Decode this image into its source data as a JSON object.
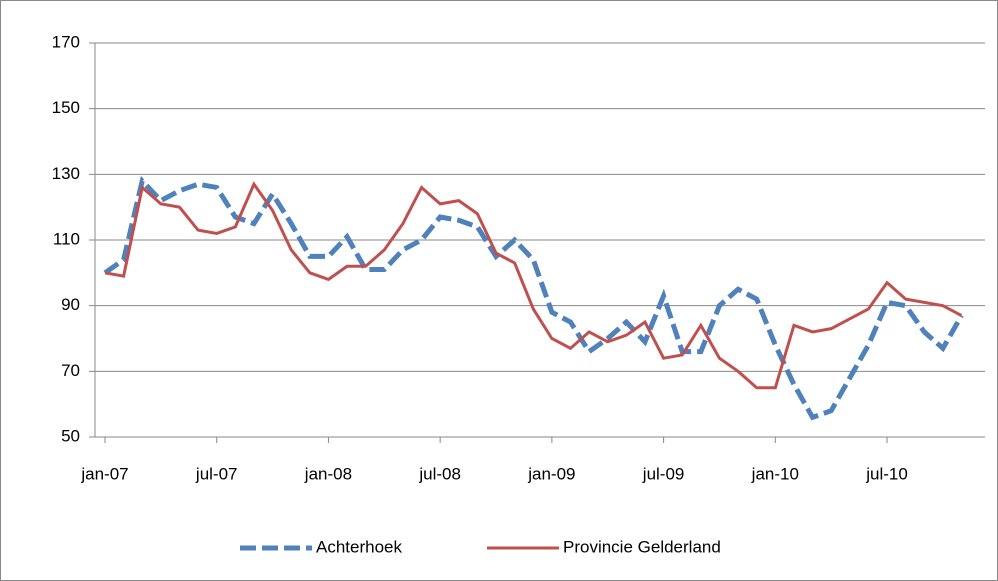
{
  "chart_data": {
    "type": "line",
    "categories": [
      "jan-07",
      null,
      null,
      null,
      null,
      null,
      "jul-07",
      null,
      null,
      null,
      null,
      null,
      "jan-08",
      null,
      null,
      null,
      null,
      null,
      "jul-08",
      null,
      null,
      null,
      null,
      null,
      "jan-09",
      null,
      null,
      null,
      null,
      null,
      "jul-09",
      null,
      null,
      null,
      null,
      null,
      "jan-10",
      null,
      null,
      null,
      null,
      null,
      "jul-10",
      null,
      null,
      null,
      null
    ],
    "series": [
      {
        "name": "Achterhoek",
        "color": "#4f81bd",
        "dashed": true,
        "values": [
          100,
          104,
          128,
          122,
          125,
          127,
          126,
          117,
          115,
          124,
          115,
          105,
          105,
          111,
          101,
          101,
          107,
          110,
          117,
          116,
          114,
          105,
          110,
          104,
          88,
          85,
          76,
          80,
          85,
          79,
          93,
          76,
          76,
          90,
          95,
          92,
          78,
          66,
          56,
          58,
          68,
          78,
          91,
          90,
          82,
          77,
          87
        ]
      },
      {
        "name": "Provincie Gelderland",
        "color": "#c0504d",
        "dashed": false,
        "values": [
          100,
          99,
          126,
          121,
          120,
          113,
          112,
          114,
          127,
          119,
          107,
          100,
          98,
          102,
          102,
          107,
          115,
          126,
          121,
          122,
          118,
          106,
          103,
          89,
          80,
          77,
          82,
          79,
          81,
          85,
          74,
          75,
          84,
          74,
          70,
          65,
          65,
          84,
          82,
          83,
          86,
          89,
          97,
          92,
          91,
          90,
          87
        ]
      }
    ],
    "ylim": [
      50,
      170
    ],
    "yticks": [
      50,
      70,
      90,
      110,
      130,
      150,
      170
    ],
    "grid": true,
    "legend": "bottom"
  }
}
